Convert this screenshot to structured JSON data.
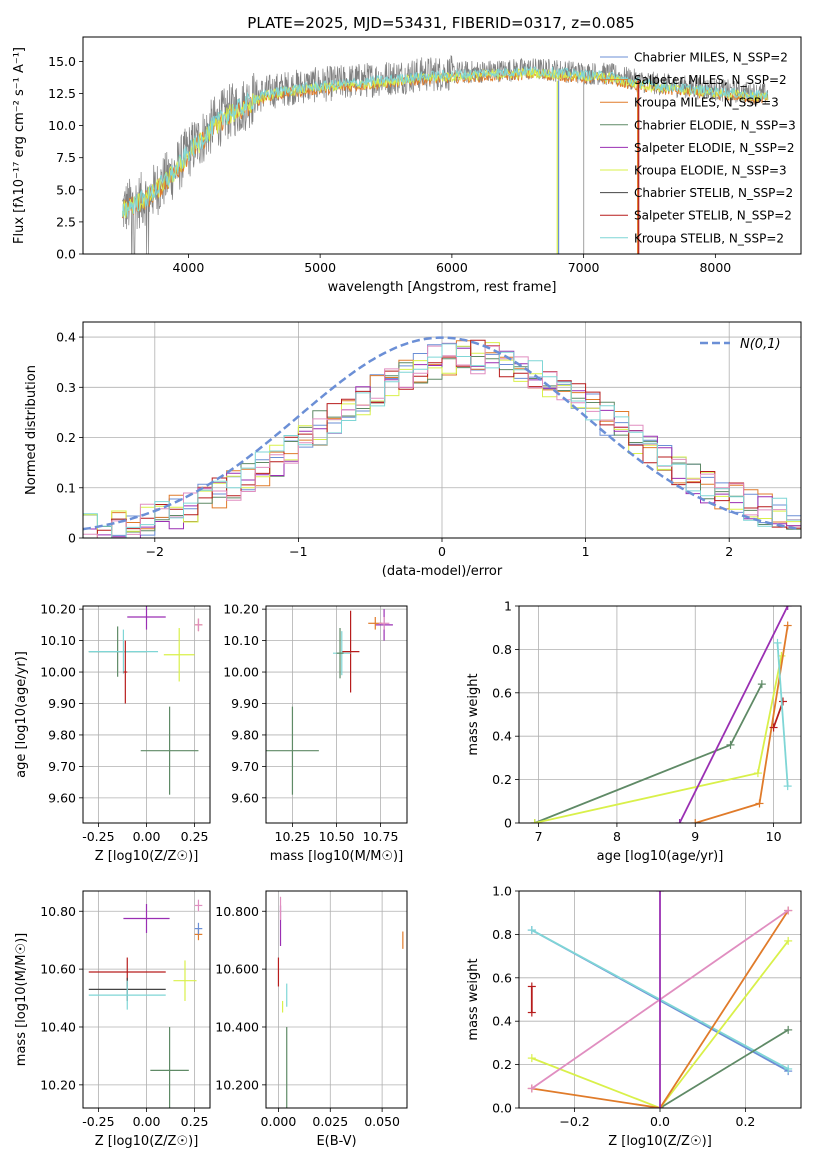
{
  "figure": {
    "title": "PLATE=2025, MJD=53431, FIBERID=0317, z=0.085"
  },
  "chart_data": [
    {
      "id": "spectrum",
      "type": "line",
      "title": "PLATE=2025, MJD=53431, FIBERID=0317, z=0.085",
      "xlabel": "wavelength [Angstrom, rest frame]",
      "ylabel": "Flux [fλ10⁻¹⁷ erg cm⁻² s⁻¹ A⁻¹]",
      "xlim": [
        3200,
        8650
      ],
      "ylim": [
        0,
        16.9
      ],
      "xticks": [
        4000,
        5000,
        6000,
        7000,
        8000
      ],
      "yticks": [
        0.0,
        2.5,
        5.0,
        7.5,
        10.0,
        12.5,
        15.0
      ],
      "grid": false,
      "legend": "top-right",
      "legend_labels": [
        "Chabrier MILES, N_SSP=2",
        "Salpeter MILES, N_SSP=2",
        "Kroupa MILES, N_SSP=3",
        "Chabrier ELODIE, N_SSP=3",
        "Salpeter ELODIE, N_SSP=2",
        "Kroupa ELODIE, N_SSP=3",
        "Chabrier STELIB, N_SSP=2",
        "Salpeter STELIB, N_SSP=2",
        "Kroupa STELIB, N_SSP=2"
      ],
      "continuum": {
        "x": [
          3500,
          3600,
          3700,
          3800,
          3900,
          4000,
          4100,
          4200,
          4300,
          4400,
          4500,
          4600,
          4800,
          5000,
          5200,
          5400,
          5600,
          5800,
          6000,
          6200,
          6400,
          6600,
          6800,
          7000,
          7200,
          7400,
          7600,
          7800,
          8000,
          8200,
          8400
        ],
        "y": [
          3.5,
          4.0,
          4.5,
          5.5,
          6.5,
          8.0,
          9.0,
          10.2,
          11.0,
          11.5,
          12.2,
          12.6,
          13.0,
          13.2,
          13.4,
          13.6,
          13.8,
          14.0,
          14.1,
          14.2,
          14.3,
          14.4,
          14.3,
          14.1,
          14.0,
          13.5,
          13.2,
          13.0,
          12.8,
          12.6,
          12.4
        ]
      }
    },
    {
      "id": "residuals",
      "type": "histogram",
      "xlabel": "(data-model)/error",
      "ylabel": "Normed distribution",
      "xlim": [
        -2.5,
        2.5
      ],
      "ylim": [
        0,
        0.43
      ],
      "xticks": [
        -2,
        -1,
        0,
        1,
        2
      ],
      "yticks": [
        0.0,
        0.1,
        0.2,
        0.3,
        0.4
      ],
      "grid": true,
      "legend": "top-right",
      "legend_label": "N(0,1)",
      "bin_width": 0.1
    },
    {
      "id": "age-vs-Z",
      "type": "scatter",
      "xlabel": "Z [log10(Z/Z☉)]",
      "ylabel": "age  [log10(age/yr)]",
      "xlim": [
        -0.33,
        0.33
      ],
      "ylim": [
        9.52,
        10.21
      ],
      "xticks": [
        -0.25,
        0.0,
        0.25
      ],
      "yticks": [
        9.6,
        9.7,
        9.8,
        9.9,
        10.0,
        10.1,
        10.2
      ],
      "grid": true,
      "points": [
        {
          "color": "#5f8a66",
          "x": 0.12,
          "xerr": 0.15,
          "y": 9.75,
          "yerr": 0.14
        },
        {
          "color": "#5f8a66",
          "x": -0.15,
          "xerr": 0.15,
          "y": 10.065,
          "yerr": 0.08
        },
        {
          "color": "#9a2fb3",
          "x": 0.0,
          "xerr": 0.1,
          "y": 10.175,
          "yerr": 0.04
        },
        {
          "color": "#e07b2a",
          "x": 0.27,
          "xerr": 0.02,
          "y": 10.15,
          "yerr": 0.02
        },
        {
          "color": "#d9f04a",
          "x": 0.17,
          "xerr": 0.08,
          "y": 10.055,
          "yerr": 0.085
        },
        {
          "color": "#7fd6d6",
          "x": -0.12,
          "xerr": 0.18,
          "y": 10.065,
          "yerr": 0.07
        },
        {
          "color": "#b71c1c",
          "x": -0.11,
          "xerr": 0.01,
          "y": 10.0,
          "yerr": 0.1
        },
        {
          "color": "#e08ec0",
          "x": 0.27,
          "xerr": 0.02,
          "y": 10.15,
          "yerr": 0.02
        }
      ]
    },
    {
      "id": "age-vs-mass",
      "type": "scatter",
      "xlabel": "mass [log10(M/M☉)]",
      "ylabel": "",
      "xlim": [
        10.1,
        10.9
      ],
      "ylim": [
        9.52,
        10.21
      ],
      "xticks": [
        10.25,
        10.5,
        10.75
      ],
      "yticks": [
        9.6,
        9.7,
        9.8,
        9.9,
        10.0,
        10.1,
        10.2
      ],
      "grid": true,
      "points": [
        {
          "color": "#5f8a66",
          "x": 10.25,
          "xerr": 0.15,
          "y": 9.75,
          "yerr": 0.14
        },
        {
          "color": "#9a2fb3",
          "x": 10.77,
          "xerr": 0.05,
          "y": 10.15,
          "yerr": 0.05
        },
        {
          "color": "#e07b2a",
          "x": 10.72,
          "xerr": 0.04,
          "y": 10.155,
          "yerr": 0.02
        },
        {
          "color": "#e08ec0",
          "x": 10.77,
          "xerr": 0.03,
          "y": 10.155,
          "yerr": 0.02
        },
        {
          "color": "#b71c1c",
          "x": 10.58,
          "xerr": 0.05,
          "y": 10.065,
          "yerr": 0.13
        },
        {
          "color": "#7fd6d6",
          "x": 10.53,
          "xerr": 0.05,
          "y": 10.06,
          "yerr": 0.07
        },
        {
          "color": "#5f8a66",
          "x": 10.52,
          "xerr": 0.02,
          "y": 10.06,
          "yerr": 0.08
        }
      ]
    },
    {
      "id": "massweight-vs-age",
      "type": "line",
      "xlabel": "age  [log10(age/yr)]",
      "ylabel": "mass weight",
      "xlim": [
        6.75,
        10.35
      ],
      "ylim": [
        0,
        1
      ],
      "xticks": [
        7,
        8,
        9,
        10
      ],
      "yticks": [
        0.0,
        0.2,
        0.4,
        0.6,
        0.8,
        1.0
      ],
      "grid": true,
      "series": [
        {
          "color": "#5f8a66",
          "x": [
            6.95,
            9.45,
            9.85
          ],
          "y": [
            0.0,
            0.36,
            0.64
          ]
        },
        {
          "color": "#d9f04a",
          "x": [
            6.95,
            9.8,
            10.1
          ],
          "y": [
            0.0,
            0.23,
            0.77
          ]
        },
        {
          "color": "#9a2fb3",
          "x": [
            8.8,
            10.18
          ],
          "y": [
            0.0,
            1.0
          ]
        },
        {
          "color": "#e07b2a",
          "x": [
            9.0,
            9.82,
            10.18
          ],
          "y": [
            0.0,
            0.09,
            0.91
          ]
        },
        {
          "color": "#b71c1c",
          "x": [
            10.0,
            10.12
          ],
          "y": [
            0.44,
            0.56
          ]
        },
        {
          "color": "#7fd6d6",
          "x": [
            10.05,
            10.18
          ],
          "y": [
            0.83,
            0.17
          ]
        }
      ]
    },
    {
      "id": "mass-vs-Z",
      "type": "scatter",
      "xlabel": "Z [log10(Z/Z☉)]",
      "ylabel": "mass [log10(M/M☉)]",
      "xlim": [
        -0.33,
        0.33
      ],
      "ylim": [
        10.12,
        10.87
      ],
      "xticks": [
        -0.25,
        0.0,
        0.25
      ],
      "yticks": [
        10.2,
        10.4,
        10.6,
        10.8
      ],
      "grid": true,
      "points": [
        {
          "color": "#5f8a66",
          "x": 0.12,
          "xerr": 0.1,
          "y": 10.25,
          "yerr": 0.15
        },
        {
          "color": "#9a2fb3",
          "x": 0.0,
          "xerr": 0.12,
          "y": 10.775,
          "yerr": 0.05
        },
        {
          "color": "#b71c1c",
          "x": -0.1,
          "xerr": 0.2,
          "y": 10.59,
          "yerr": 0.05
        },
        {
          "color": "#444444",
          "x": -0.1,
          "xerr": 0.2,
          "y": 10.53,
          "yerr": 0.04
        },
        {
          "color": "#7fd6d6",
          "x": -0.1,
          "xerr": 0.2,
          "y": 10.51,
          "yerr": 0.05
        },
        {
          "color": "#d9f04a",
          "x": 0.2,
          "xerr": 0.06,
          "y": 10.56,
          "yerr": 0.07
        },
        {
          "color": "#e07b2a",
          "x": 0.27,
          "xerr": 0.02,
          "y": 10.72,
          "yerr": 0.02
        },
        {
          "color": "#e08ec0",
          "x": 0.27,
          "xerr": 0.02,
          "y": 10.82,
          "yerr": 0.02
        },
        {
          "color": "#6b8fd6",
          "x": 0.27,
          "xerr": 0.02,
          "y": 10.74,
          "yerr": 0.02
        }
      ]
    },
    {
      "id": "mass-vs-EBV",
      "type": "scatter",
      "xlabel": "E(B-V)",
      "ylabel": "",
      "xlim": [
        -0.006,
        0.062
      ],
      "ylim": [
        10.12,
        10.87
      ],
      "xticks": [
        0.0,
        0.025,
        0.05
      ],
      "yticks": [
        10.2,
        10.4,
        10.6,
        10.8
      ],
      "grid": true,
      "points": [
        {
          "color": "#5f8a66",
          "x": 0.004,
          "y": 10.25,
          "yerr": 0.15
        },
        {
          "color": "#9a2fb3",
          "x": 0.001,
          "y": 10.75,
          "yerr": 0.07
        },
        {
          "color": "#b71c1c",
          "x": 0.0,
          "y": 10.59,
          "yerr": 0.05
        },
        {
          "color": "#7fd6d6",
          "x": 0.004,
          "y": 10.51,
          "yerr": 0.04
        },
        {
          "color": "#d9f04a",
          "x": 0.002,
          "y": 10.47,
          "yerr": 0.02
        },
        {
          "color": "#e08ec0",
          "x": 0.001,
          "y": 10.81,
          "yerr": 0.04
        },
        {
          "color": "#e07b2a",
          "x": 0.06,
          "y": 10.7,
          "yerr": 0.03
        }
      ]
    },
    {
      "id": "massweight-vs-Z",
      "type": "line",
      "xlabel": "Z [log10(Z/Z☉)]",
      "ylabel": "mass weight",
      "xlim": [
        -0.33,
        0.33
      ],
      "ylim": [
        0,
        1
      ],
      "xticks": [
        -0.2,
        0.0,
        0.2
      ],
      "yticks": [
        0.0,
        0.2,
        0.4,
        0.6,
        0.8,
        1.0
      ],
      "grid": true,
      "series": [
        {
          "color": "#6b8fd6",
          "x": [
            -0.3,
            0.3
          ],
          "y": [
            0.82,
            0.17
          ]
        },
        {
          "color": "#7fd6d6",
          "x": [
            -0.3,
            0.3
          ],
          "y": [
            0.82,
            0.18
          ]
        },
        {
          "color": "#5f8a66",
          "x": [
            0.0,
            0.3
          ],
          "y": [
            0.0,
            0.36
          ]
        },
        {
          "color": "#d9f04a",
          "x": [
            -0.3,
            0.0,
            0.3
          ],
          "y": [
            0.23,
            0.0,
            0.77
          ]
        },
        {
          "color": "#e07b2a",
          "x": [
            -0.3,
            0.0,
            0.3
          ],
          "y": [
            0.09,
            0.0,
            0.91
          ]
        },
        {
          "color": "#e08ec0",
          "x": [
            -0.3,
            0.3
          ],
          "y": [
            0.09,
            0.91
          ]
        },
        {
          "color": "#9a2fb3",
          "x": [
            0.0,
            0.0
          ],
          "y": [
            0.0,
            1.0
          ]
        },
        {
          "color": "#b71c1c",
          "x": [
            -0.3,
            -0.3
          ],
          "y": [
            0.44,
            0.56
          ]
        }
      ]
    }
  ]
}
